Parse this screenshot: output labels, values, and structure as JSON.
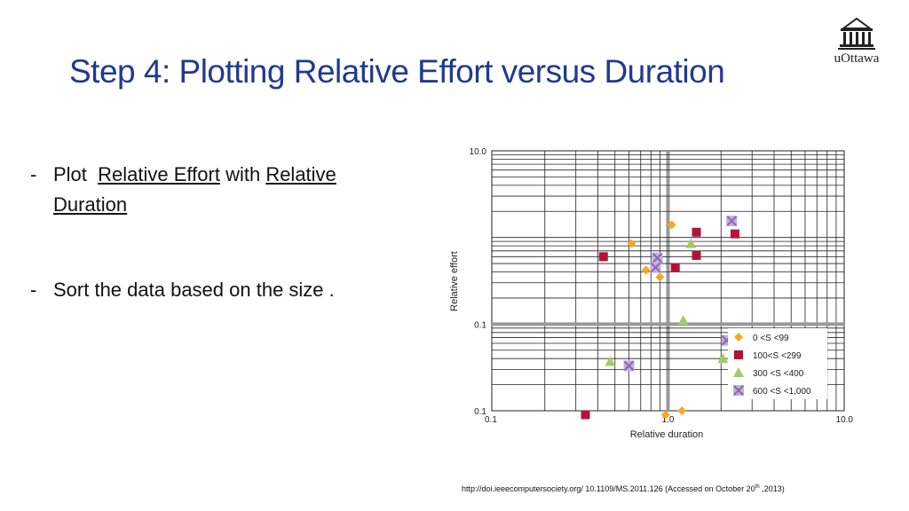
{
  "slide": {
    "title": "Step 4: Plotting Relative Effort versus Duration",
    "logo_text": "uOttawa",
    "bullets": [
      {
        "dash": "-",
        "text_plot": "Plot",
        "text_effort": "Relative Effort",
        "text_with": "with",
        "text_duration_1": "Relative",
        "text_duration_2": "Duration"
      },
      {
        "dash": "-",
        "text": "Sort the data based on the size ."
      }
    ],
    "citation": {
      "prefix": "http://doi.ieeecomputersociety.org/ 10.1109/MS.2011.126 (Accessed on October 20",
      "sup": "th",
      "suffix": " ,2013)"
    }
  },
  "chart_data": {
    "type": "scatter",
    "xlabel": "Relative duration",
    "ylabel": "Relative effort",
    "xscale": "log",
    "yscale": "log",
    "xlim": [
      0.1,
      10.0
    ],
    "ylim": [
      0.01,
      10.0
    ],
    "x_ticks": [
      "0.1",
      "1.0",
      "10.0"
    ],
    "y_ticks": [
      "0.1",
      "0.1",
      "10.0"
    ],
    "grid": true,
    "legend_position": "bottom-right",
    "series": [
      {
        "name": "0 <S <99",
        "marker": "diamond",
        "color": "#f7a823",
        "points": [
          [
            0.62,
            0.85
          ],
          [
            1.05,
            1.4
          ],
          [
            0.75,
            0.42
          ],
          [
            0.9,
            0.35
          ],
          [
            0.97,
            0.009
          ],
          [
            1.2,
            0.01
          ]
        ]
      },
      {
        "name": "100<S <299",
        "marker": "square",
        "color": "#b3123a",
        "points": [
          [
            0.43,
            0.6
          ],
          [
            1.1,
            0.45
          ],
          [
            1.45,
            1.15
          ],
          [
            1.45,
            0.62
          ],
          [
            2.4,
            1.1
          ],
          [
            2.7,
            0.05
          ],
          [
            0.34,
            0.009
          ]
        ]
      },
      {
        "name": "300 <S <400",
        "marker": "triangle",
        "color": "#a3c96a",
        "points": [
          [
            1.35,
            0.85
          ],
          [
            1.22,
            0.11
          ],
          [
            0.47,
            0.037
          ],
          [
            2.05,
            0.04
          ]
        ]
      },
      {
        "name": "600 <S <1,000",
        "marker": "x-square",
        "color": "#8a66b3",
        "points": [
          [
            2.3,
            1.55
          ],
          [
            0.87,
            0.58
          ],
          [
            0.85,
            0.45
          ],
          [
            2.15,
            0.065
          ],
          [
            0.6,
            0.033
          ]
        ]
      }
    ]
  }
}
